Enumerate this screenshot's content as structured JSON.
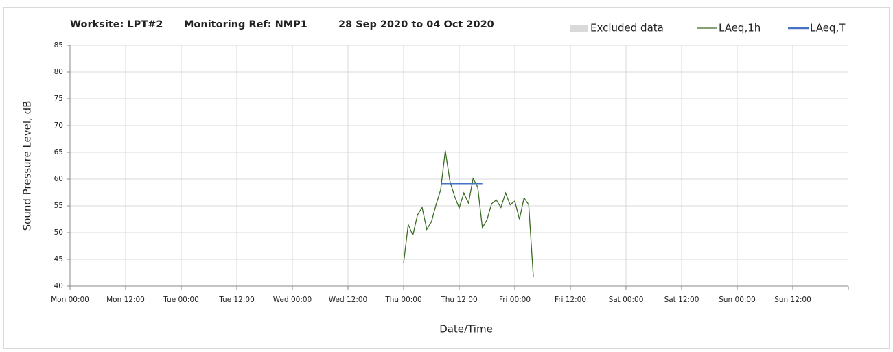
{
  "chart_data": {
    "type": "line",
    "title_parts": [
      "Worksite: LPT#2",
      "Monitoring Ref: NMP1",
      "28 Sep 2020 to 04 Oct 2020"
    ],
    "x_label": "Date/Time",
    "y_label": "Sound Pressure Level, dB",
    "xlim": [
      0,
      168
    ],
    "xticks": [
      {
        "value": 0,
        "label": "Mon 00:00"
      },
      {
        "value": 12,
        "label": "Mon 12:00"
      },
      {
        "value": 24,
        "label": "Tue 00:00"
      },
      {
        "value": 36,
        "label": "Tue 12:00"
      },
      {
        "value": 48,
        "label": "Wed 00:00"
      },
      {
        "value": 60,
        "label": "Wed 12:00"
      },
      {
        "value": 72,
        "label": "Thu 00:00"
      },
      {
        "value": 84,
        "label": "Thu 12:00"
      },
      {
        "value": 96,
        "label": "Fri 00:00"
      },
      {
        "value": 108,
        "label": "Fri 12:00"
      },
      {
        "value": 120,
        "label": "Sat 00:00"
      },
      {
        "value": 132,
        "label": "Sat 12:00"
      },
      {
        "value": 144,
        "label": "Sun 00:00"
      },
      {
        "value": 156,
        "label": "Sun 12:00"
      }
    ],
    "ylim": [
      40,
      85
    ],
    "yticks": [
      40,
      45,
      50,
      55,
      60,
      65,
      70,
      75,
      80,
      85
    ],
    "grid": true,
    "series": [
      {
        "name": "Excluded data",
        "color": "#d9d9d9",
        "x": [],
        "values": []
      },
      {
        "name": "LAeq,1h",
        "color": "#3a6b24",
        "x": [
          72,
          73,
          74,
          75,
          76,
          77,
          78,
          79,
          80,
          81,
          82,
          83,
          84,
          85,
          86,
          87,
          88,
          89,
          90,
          91,
          92,
          93,
          94,
          95,
          96,
          97,
          98,
          99,
          100
        ],
        "values": [
          44.3,
          51.5,
          49.5,
          53.3,
          54.7,
          50.6,
          52,
          55.2,
          58,
          65.3,
          59.6,
          56.8,
          54.6,
          57.4,
          55.5,
          60.1,
          58.5,
          50.9,
          52.4,
          55.4,
          56.1,
          54.7,
          57.4,
          55.2,
          55.9,
          52.5,
          56.5,
          55.2,
          41.8
        ]
      },
      {
        "name": "LAeq,T",
        "color": "#4472c4",
        "x": [
          80,
          89
        ],
        "values": [
          59.2,
          59.2
        ]
      }
    ]
  }
}
